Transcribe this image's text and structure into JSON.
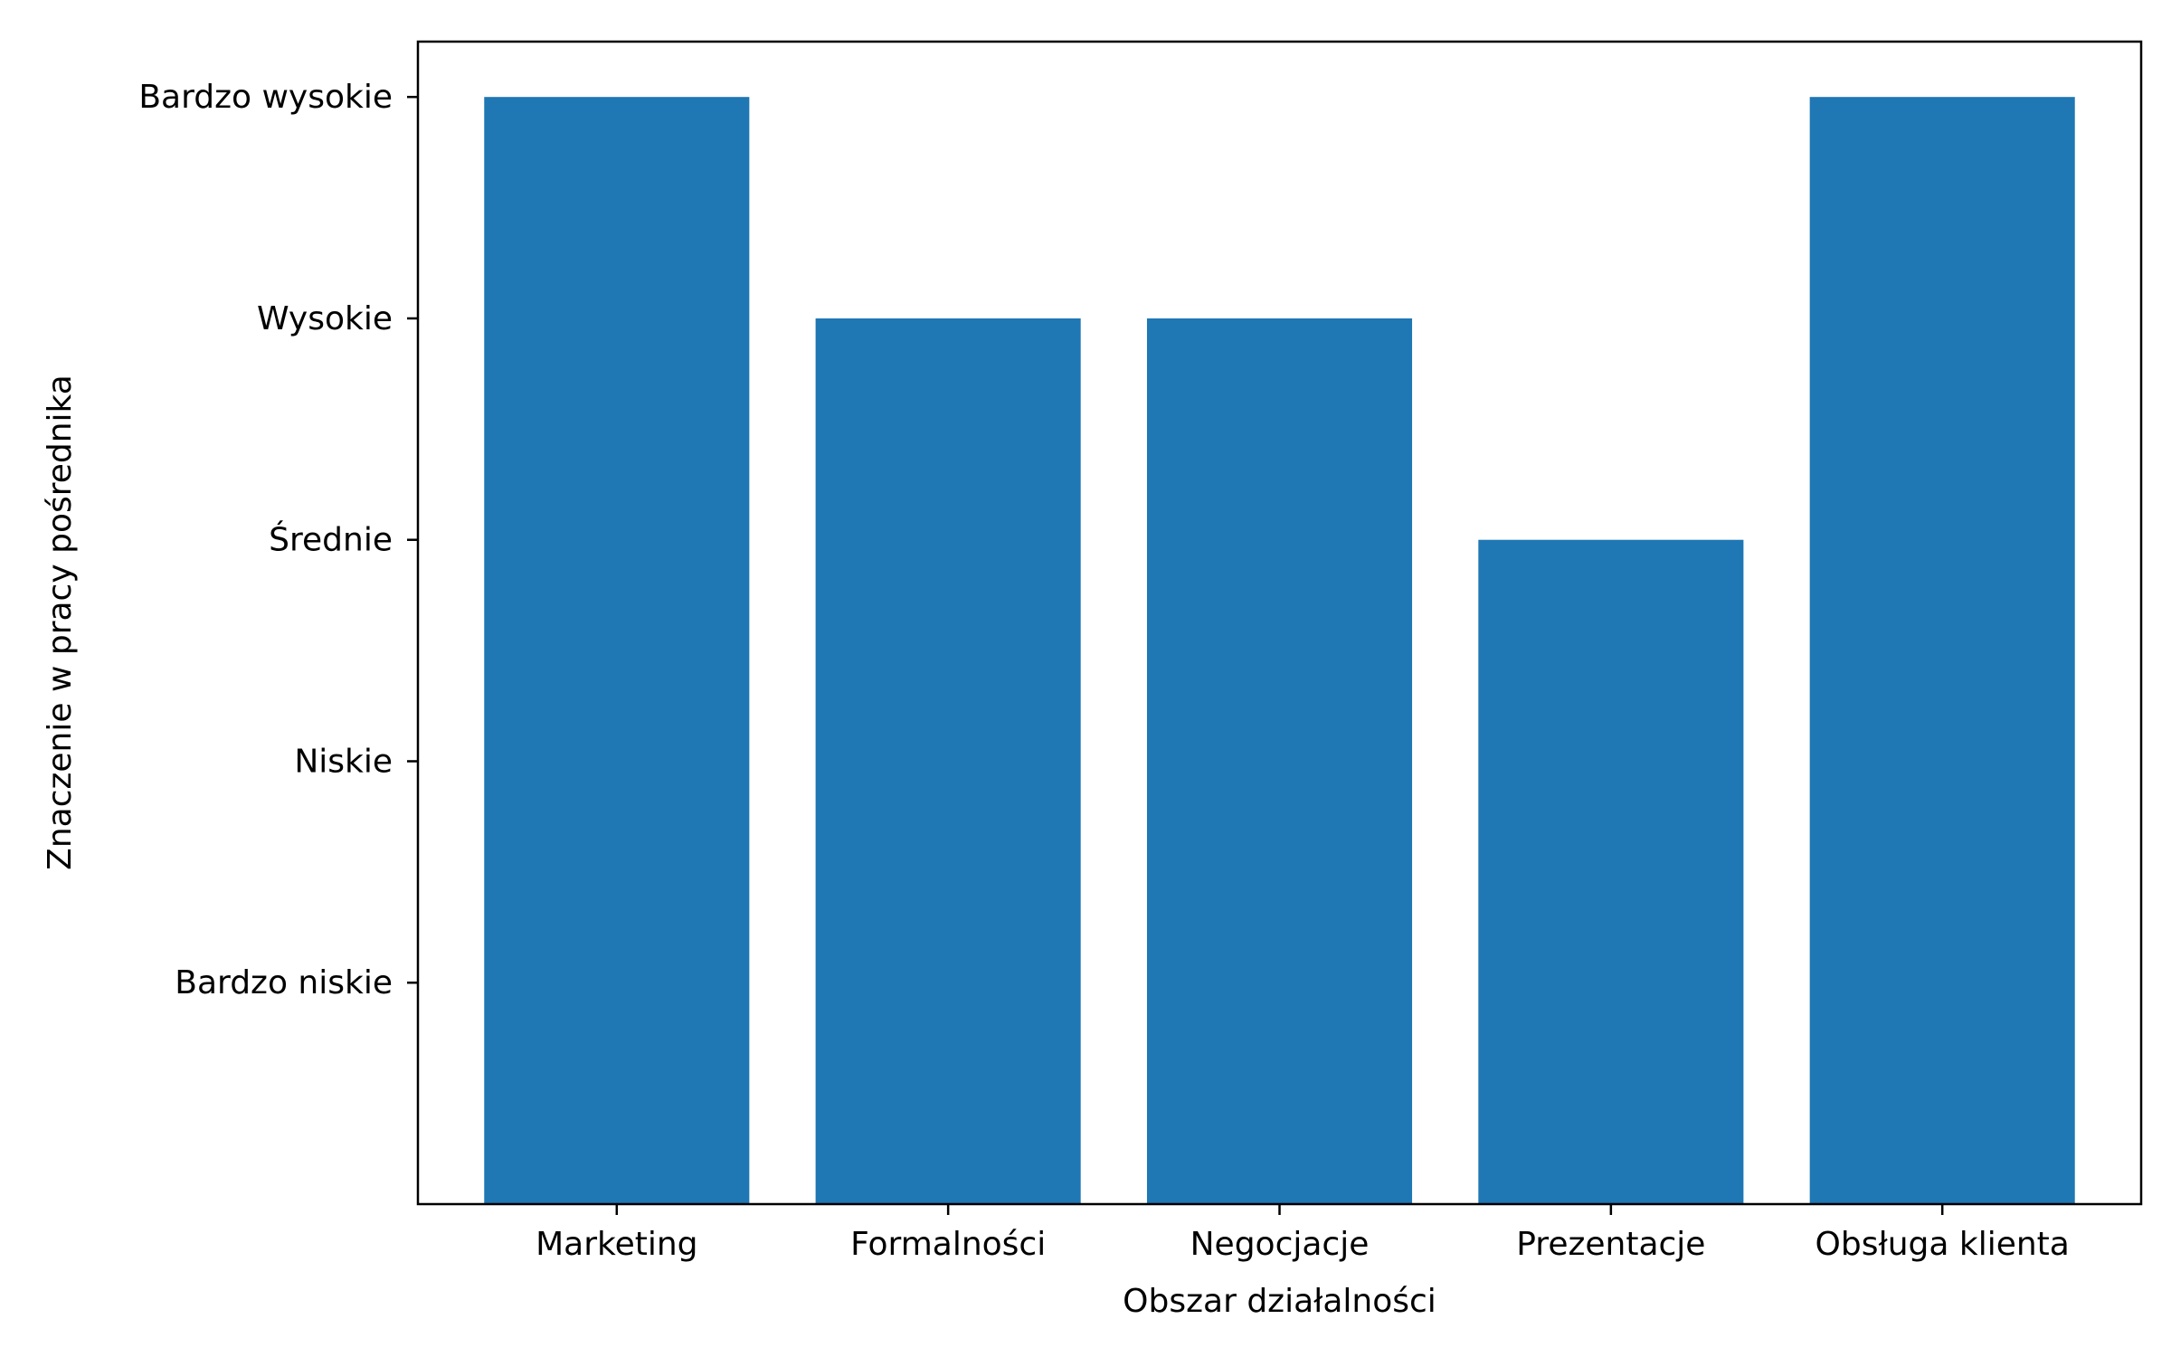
{
  "chart_data": {
    "type": "bar",
    "title": "",
    "xlabel": "Obszar działalności",
    "ylabel": "Znaczenie w pracy pośrednika",
    "categories": [
      "Marketing",
      "Formalności",
      "Negocjacje",
      "Prezentacje",
      "Obsługa klienta"
    ],
    "values": [
      5,
      4,
      4,
      3,
      5
    ],
    "y_ticks": [
      {
        "value": 1,
        "label": "Bardzo niskie"
      },
      {
        "value": 2,
        "label": "Niskie"
      },
      {
        "value": 3,
        "label": "Średnie"
      },
      {
        "value": 4,
        "label": "Wysokie"
      },
      {
        "value": 5,
        "label": "Bardzo wysokie"
      }
    ],
    "ylim": [
      0,
      5.25
    ],
    "grid": false,
    "legend": "none",
    "bar_color": "#1f77b4"
  }
}
